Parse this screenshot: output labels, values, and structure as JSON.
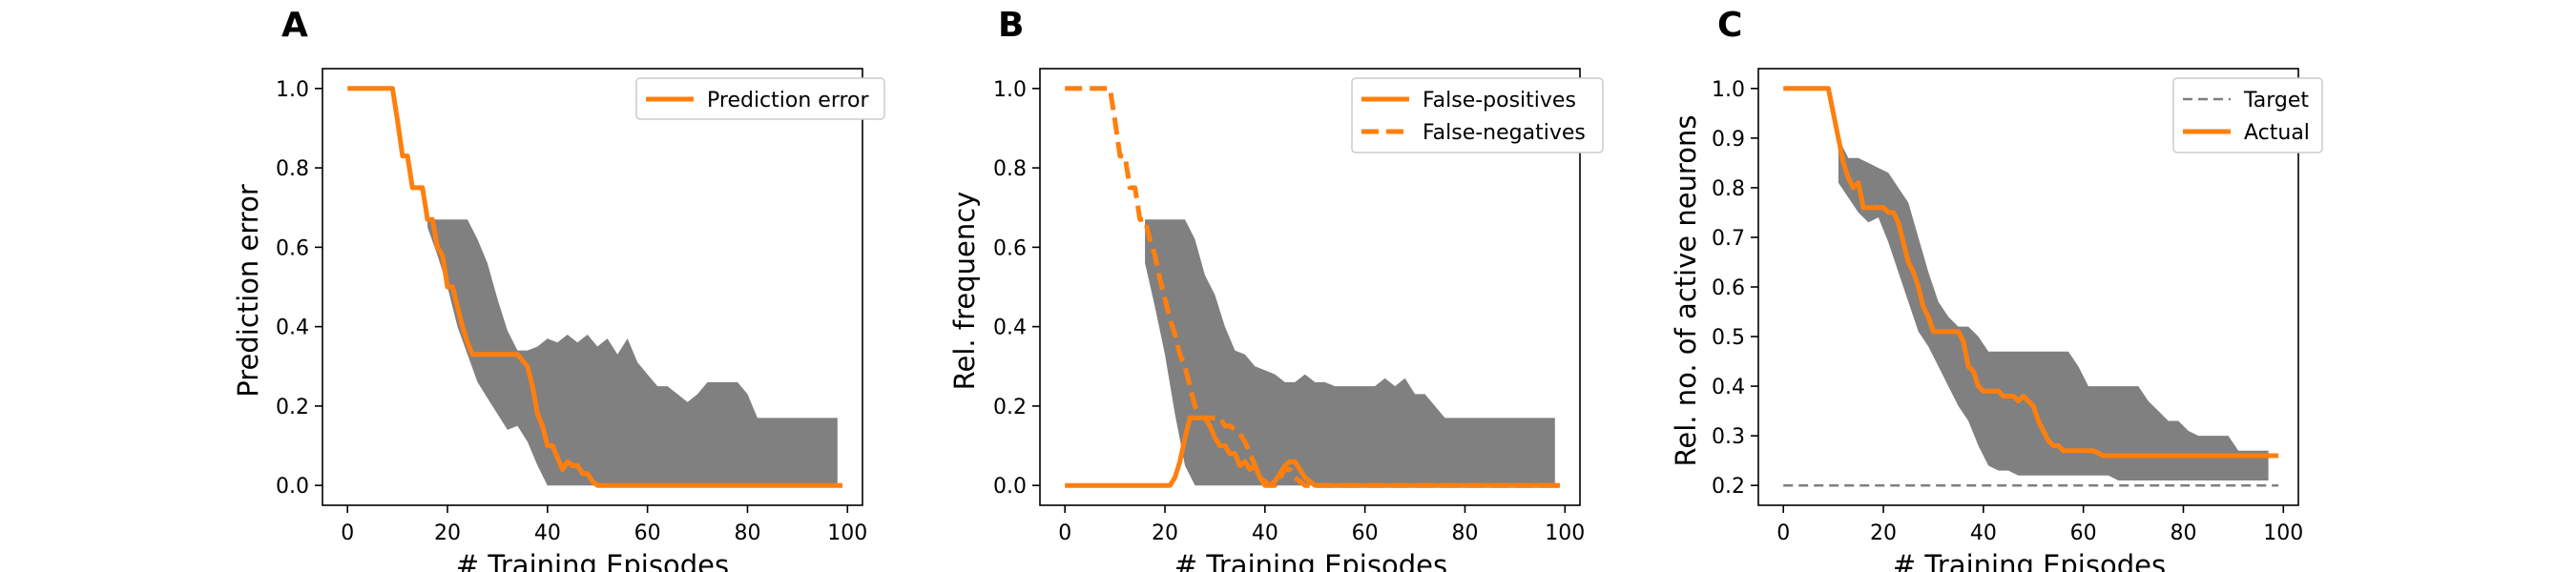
{
  "colors": {
    "orange": "#ff7f0e",
    "band": "#808080",
    "target": "#7f7f7f"
  },
  "chart_data": [
    {
      "panel_label": "A",
      "type": "line",
      "xlabel": "# Training Episodes",
      "ylabel": "Prediction error",
      "xlim": [
        -5,
        103
      ],
      "ylim": [
        -0.05,
        1.05
      ],
      "xticks": [
        0,
        20,
        40,
        60,
        80,
        100
      ],
      "yticks": [
        0.0,
        0.2,
        0.4,
        0.6,
        0.8,
        1.0
      ],
      "ytick_labels": [
        "0.0",
        "0.2",
        "0.4",
        "0.6",
        "0.8",
        "1.0"
      ],
      "legend_position": "upper-right",
      "band": {
        "x": [
          16,
          18,
          20,
          22,
          24,
          26,
          28,
          30,
          32,
          34,
          36,
          38,
          40,
          42,
          44,
          46,
          48,
          50,
          52,
          54,
          56,
          58,
          60,
          62,
          64,
          66,
          68,
          70,
          72,
          74,
          76,
          78,
          80,
          82,
          84,
          86,
          88,
          90,
          92,
          94,
          96,
          98
        ],
        "upper": [
          0.67,
          0.67,
          0.67,
          0.67,
          0.67,
          0.62,
          0.56,
          0.47,
          0.39,
          0.34,
          0.34,
          0.35,
          0.37,
          0.36,
          0.38,
          0.36,
          0.38,
          0.35,
          0.37,
          0.33,
          0.37,
          0.31,
          0.28,
          0.25,
          0.25,
          0.23,
          0.21,
          0.23,
          0.26,
          0.26,
          0.26,
          0.26,
          0.23,
          0.17,
          0.17,
          0.17,
          0.17,
          0.17,
          0.17,
          0.17,
          0.17,
          0.17
        ],
        "lower": [
          0.65,
          0.58,
          0.5,
          0.4,
          0.33,
          0.26,
          0.22,
          0.18,
          0.14,
          0.15,
          0.11,
          0.05,
          0.0,
          0.0,
          0.0,
          0.0,
          0.0,
          0.0,
          0.0,
          0.0,
          0.0,
          0.0,
          0.0,
          0.0,
          0.0,
          0.0,
          0.0,
          0.0,
          0.0,
          0.0,
          0.0,
          0.0,
          0.0,
          0.0,
          0.0,
          0.0,
          0.0,
          0.0,
          0.0,
          0.0,
          0.0,
          0.0
        ]
      },
      "series": [
        {
          "name": "Prediction error",
          "style": "solid",
          "color": "#ff7f0e",
          "x": [
            0,
            9,
            10,
            11,
            12,
            13,
            14,
            15,
            16,
            17,
            18,
            19,
            20,
            21,
            22,
            23,
            24,
            25,
            26,
            27,
            28,
            30,
            32,
            34,
            36,
            37,
            38,
            39,
            40,
            41,
            42,
            43,
            44,
            45,
            46,
            47,
            48,
            49,
            50,
            51,
            55,
            60,
            70,
            80,
            90,
            99
          ],
          "y": [
            1.0,
            1.0,
            0.92,
            0.83,
            0.83,
            0.75,
            0.75,
            0.75,
            0.67,
            0.67,
            0.6,
            0.58,
            0.5,
            0.5,
            0.45,
            0.4,
            0.36,
            0.33,
            0.33,
            0.33,
            0.33,
            0.33,
            0.33,
            0.33,
            0.3,
            0.25,
            0.18,
            0.15,
            0.1,
            0.1,
            0.07,
            0.04,
            0.06,
            0.05,
            0.05,
            0.03,
            0.03,
            0.01,
            0.0,
            0.0,
            0.0,
            0.0,
            0.0,
            0.0,
            0.0,
            0.0
          ]
        }
      ]
    },
    {
      "panel_label": "B",
      "type": "line",
      "xlabel": "# Training Episodes",
      "ylabel": "Rel. frequency",
      "xlim": [
        -5,
        103
      ],
      "ylim": [
        -0.05,
        1.05
      ],
      "xticks": [
        0,
        20,
        40,
        60,
        80,
        100
      ],
      "yticks": [
        0.0,
        0.2,
        0.4,
        0.6,
        0.8,
        1.0
      ],
      "ytick_labels": [
        "0.0",
        "0.2",
        "0.4",
        "0.6",
        "0.8",
        "1.0"
      ],
      "legend_position": "upper-right",
      "band": {
        "x": [
          16,
          18,
          20,
          22,
          24,
          26,
          28,
          30,
          32,
          34,
          36,
          38,
          40,
          42,
          44,
          46,
          48,
          50,
          52,
          54,
          56,
          58,
          60,
          62,
          64,
          66,
          68,
          70,
          72,
          74,
          76,
          78,
          80,
          82,
          84,
          86,
          88,
          90,
          92,
          94,
          96,
          98
        ],
        "upper": [
          0.67,
          0.67,
          0.67,
          0.67,
          0.67,
          0.62,
          0.53,
          0.48,
          0.4,
          0.34,
          0.33,
          0.3,
          0.29,
          0.28,
          0.26,
          0.26,
          0.28,
          0.26,
          0.26,
          0.25,
          0.25,
          0.25,
          0.25,
          0.25,
          0.27,
          0.25,
          0.27,
          0.23,
          0.23,
          0.2,
          0.17,
          0.17,
          0.17,
          0.17,
          0.17,
          0.17,
          0.17,
          0.17,
          0.17,
          0.17,
          0.17,
          0.17
        ],
        "lower": [
          0.56,
          0.45,
          0.33,
          0.18,
          0.05,
          0.0,
          0.0,
          0.0,
          0.0,
          0.0,
          0.0,
          0.0,
          0.0,
          0.0,
          0.0,
          0.0,
          0.0,
          0.0,
          0.0,
          0.0,
          0.0,
          0.0,
          0.0,
          0.0,
          0.0,
          0.0,
          0.0,
          0.0,
          0.0,
          0.0,
          0.0,
          0.0,
          0.0,
          0.0,
          0.0,
          0.0,
          0.0,
          0.0,
          0.0,
          0.0,
          0.0,
          0.0
        ]
      },
      "series": [
        {
          "name": "False-positives",
          "style": "solid",
          "color": "#ff7f0e",
          "x": [
            0,
            20,
            21,
            22,
            23,
            24,
            25,
            26,
            27,
            28,
            29,
            30,
            31,
            32,
            33,
            34,
            35,
            36,
            37,
            38,
            39,
            40,
            41,
            42,
            43,
            44,
            45,
            46,
            47,
            48,
            49,
            50,
            51,
            55,
            60,
            70,
            80,
            90,
            99
          ],
          "y": [
            0.0,
            0.0,
            0.0,
            0.02,
            0.06,
            0.12,
            0.17,
            0.17,
            0.17,
            0.17,
            0.15,
            0.12,
            0.1,
            0.1,
            0.08,
            0.08,
            0.05,
            0.06,
            0.04,
            0.05,
            0.02,
            0.0,
            0.0,
            0.01,
            0.03,
            0.05,
            0.06,
            0.06,
            0.04,
            0.02,
            0.01,
            0.0,
            0.0,
            0.0,
            0.0,
            0.0,
            0.0,
            0.0,
            0.0
          ]
        },
        {
          "name": "False-negatives",
          "style": "dashed",
          "color": "#ff7f0e",
          "x": [
            0,
            9,
            10,
            11,
            12,
            13,
            14,
            15,
            16,
            17,
            18,
            19,
            20,
            21,
            22,
            23,
            24,
            25,
            26,
            27,
            28,
            29,
            30,
            31,
            32,
            33,
            34,
            35,
            36,
            37,
            38,
            39,
            40,
            41,
            42,
            43,
            44,
            45,
            46,
            47,
            48,
            49,
            50,
            51,
            55,
            60,
            70,
            80,
            90,
            99
          ],
          "y": [
            1.0,
            1.0,
            0.92,
            0.83,
            0.83,
            0.75,
            0.75,
            0.67,
            0.67,
            0.62,
            0.58,
            0.52,
            0.47,
            0.42,
            0.38,
            0.33,
            0.3,
            0.25,
            0.2,
            0.17,
            0.17,
            0.17,
            0.17,
            0.17,
            0.15,
            0.15,
            0.14,
            0.13,
            0.11,
            0.08,
            0.05,
            0.02,
            0.01,
            0.0,
            0.0,
            0.02,
            0.04,
            0.04,
            0.02,
            0.01,
            0.0,
            0.0,
            0.0,
            0.0,
            0.0,
            0.0,
            0.0,
            0.0,
            0.0,
            0.0
          ]
        }
      ]
    },
    {
      "panel_label": "C",
      "type": "line",
      "xlabel": "# Training Episodes",
      "ylabel": "Rel. no. of active neurons",
      "xlim": [
        -5,
        103
      ],
      "ylim": [
        0.16,
        1.04
      ],
      "xticks": [
        0,
        20,
        40,
        60,
        80,
        100
      ],
      "yticks": [
        0.2,
        0.3,
        0.4,
        0.5,
        0.6,
        0.7,
        0.8,
        0.9,
        1.0
      ],
      "ytick_labels": [
        "0.2",
        "0.3",
        "0.4",
        "0.5",
        "0.6",
        "0.7",
        "0.8",
        "0.9",
        "1.0"
      ],
      "legend_position": "upper-right",
      "band": {
        "x": [
          11,
          13,
          15,
          17,
          19,
          21,
          23,
          25,
          27,
          29,
          31,
          33,
          35,
          37,
          39,
          41,
          43,
          45,
          47,
          49,
          51,
          53,
          55,
          57,
          59,
          61,
          63,
          65,
          67,
          69,
          71,
          73,
          75,
          77,
          79,
          81,
          83,
          85,
          87,
          89,
          91,
          93,
          95,
          97
        ],
        "upper": [
          0.9,
          0.86,
          0.86,
          0.85,
          0.84,
          0.83,
          0.8,
          0.77,
          0.7,
          0.63,
          0.57,
          0.54,
          0.52,
          0.52,
          0.5,
          0.47,
          0.47,
          0.47,
          0.47,
          0.47,
          0.47,
          0.47,
          0.47,
          0.47,
          0.44,
          0.4,
          0.4,
          0.4,
          0.4,
          0.4,
          0.4,
          0.37,
          0.35,
          0.33,
          0.33,
          0.31,
          0.3,
          0.3,
          0.3,
          0.3,
          0.27,
          0.27,
          0.27,
          0.27
        ],
        "lower": [
          0.81,
          0.78,
          0.75,
          0.73,
          0.74,
          0.69,
          0.63,
          0.57,
          0.51,
          0.48,
          0.44,
          0.4,
          0.36,
          0.33,
          0.28,
          0.24,
          0.23,
          0.23,
          0.22,
          0.22,
          0.22,
          0.22,
          0.22,
          0.22,
          0.22,
          0.22,
          0.22,
          0.22,
          0.21,
          0.21,
          0.21,
          0.21,
          0.21,
          0.21,
          0.21,
          0.21,
          0.21,
          0.21,
          0.21,
          0.21,
          0.21,
          0.21,
          0.21,
          0.21
        ]
      },
      "series": [
        {
          "name": "Target",
          "style": "dashed-thin",
          "color": "#7f7f7f",
          "x": [
            0,
            99
          ],
          "y": [
            0.2,
            0.2
          ]
        },
        {
          "name": "Actual",
          "style": "solid",
          "color": "#ff7f0e",
          "x": [
            0,
            9,
            10,
            11,
            12,
            13,
            14,
            15,
            16,
            17,
            18,
            19,
            20,
            21,
            22,
            23,
            24,
            25,
            26,
            27,
            28,
            29,
            30,
            31,
            32,
            33,
            34,
            35,
            36,
            37,
            38,
            39,
            40,
            41,
            42,
            43,
            44,
            45,
            46,
            47,
            48,
            49,
            50,
            51,
            52,
            53,
            54,
            55,
            56,
            57,
            58,
            59,
            60,
            61,
            62,
            63,
            64,
            66,
            70,
            80,
            90,
            99
          ],
          "y": [
            1.0,
            1.0,
            0.95,
            0.9,
            0.85,
            0.82,
            0.8,
            0.81,
            0.76,
            0.76,
            0.76,
            0.76,
            0.76,
            0.75,
            0.75,
            0.73,
            0.69,
            0.65,
            0.63,
            0.6,
            0.56,
            0.54,
            0.51,
            0.51,
            0.51,
            0.51,
            0.51,
            0.51,
            0.49,
            0.44,
            0.43,
            0.4,
            0.39,
            0.39,
            0.39,
            0.39,
            0.38,
            0.38,
            0.38,
            0.37,
            0.38,
            0.37,
            0.36,
            0.33,
            0.31,
            0.29,
            0.28,
            0.28,
            0.27,
            0.27,
            0.27,
            0.27,
            0.27,
            0.27,
            0.27,
            0.265,
            0.26,
            0.26,
            0.26,
            0.26,
            0.26,
            0.26
          ]
        }
      ]
    }
  ]
}
